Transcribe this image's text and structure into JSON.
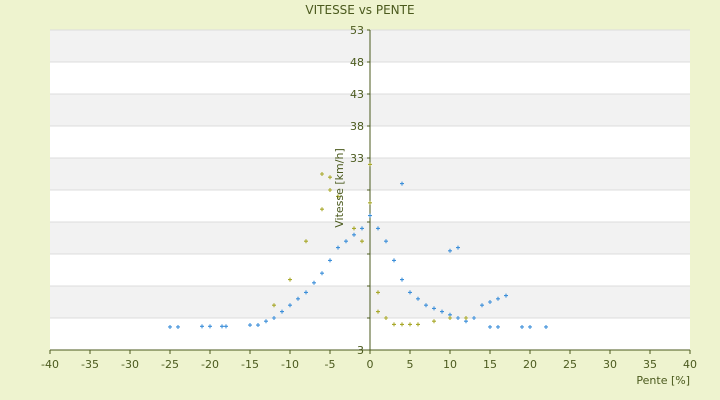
{
  "chart_data": {
    "type": "scatter",
    "title": "VITESSE vs PENTE",
    "xlabel": "Pente [%]",
    "ylabel": "Vitesse [km/h]",
    "xlim": [
      -40,
      40
    ],
    "ylim": [
      3,
      53
    ],
    "x_ticks": [
      -40,
      -35,
      -30,
      -25,
      -20,
      -15,
      -10,
      -5,
      0,
      5,
      10,
      15,
      20,
      25,
      30,
      35,
      40
    ],
    "y_ticks": [
      3,
      8,
      13,
      18,
      23,
      28,
      33,
      38,
      43,
      48,
      53
    ],
    "y_tick_labels": [
      "3",
      "",
      "",
      "",
      "",
      "",
      "33",
      "38",
      "43",
      "48",
      "53"
    ],
    "grid": "horizontal alternating bands",
    "series": [
      {
        "color": "#3d8fd9",
        "marker": "small cross",
        "points": [
          [
            -25,
            6.6
          ],
          [
            -24,
            6.6
          ],
          [
            -21,
            6.7
          ],
          [
            -20,
            6.7
          ],
          [
            -18.5,
            6.7
          ],
          [
            -18,
            6.7
          ],
          [
            -15,
            6.9
          ],
          [
            -14,
            6.9
          ],
          [
            -13,
            7.5
          ],
          [
            -12,
            8
          ],
          [
            -11,
            9
          ],
          [
            -10,
            10
          ],
          [
            -9,
            11
          ],
          [
            -8,
            12
          ],
          [
            -7,
            13.5
          ],
          [
            -6,
            15
          ],
          [
            -5,
            17
          ],
          [
            -4,
            19
          ],
          [
            -3,
            20
          ],
          [
            -2,
            21
          ],
          [
            -1,
            22
          ],
          [
            0,
            24
          ],
          [
            1,
            22
          ],
          [
            2,
            20
          ],
          [
            3,
            17
          ],
          [
            4,
            14
          ],
          [
            5,
            12
          ],
          [
            6,
            11
          ],
          [
            7,
            10
          ],
          [
            8,
            9.5
          ],
          [
            9,
            9
          ],
          [
            10,
            8.5
          ],
          [
            11,
            8
          ],
          [
            12,
            7.5
          ],
          [
            13,
            8
          ],
          [
            14,
            10
          ],
          [
            15,
            10.5
          ],
          [
            16,
            11
          ],
          [
            17,
            11.5
          ],
          [
            10,
            18.5
          ],
          [
            11,
            19
          ],
          [
            4,
            29
          ],
          [
            15,
            6.6
          ],
          [
            16,
            6.6
          ],
          [
            19,
            6.6
          ],
          [
            20,
            6.6
          ],
          [
            22,
            6.6
          ]
        ]
      },
      {
        "color": "#a8a82a",
        "marker": "small cross",
        "points": [
          [
            -6,
            30.5
          ],
          [
            -5,
            30
          ],
          [
            -5,
            28
          ],
          [
            -4,
            27
          ],
          [
            -6,
            25
          ],
          [
            -8,
            20
          ],
          [
            -10,
            14
          ],
          [
            -12,
            10
          ],
          [
            -2,
            22
          ],
          [
            -1,
            20
          ],
          [
            0,
            32
          ],
          [
            0,
            26
          ],
          [
            1,
            12
          ],
          [
            1,
            9
          ],
          [
            2,
            8
          ],
          [
            3,
            7
          ],
          [
            4,
            7
          ],
          [
            5,
            7
          ],
          [
            6,
            7
          ],
          [
            8,
            7.5
          ],
          [
            10,
            8
          ],
          [
            12,
            8
          ]
        ]
      }
    ]
  }
}
